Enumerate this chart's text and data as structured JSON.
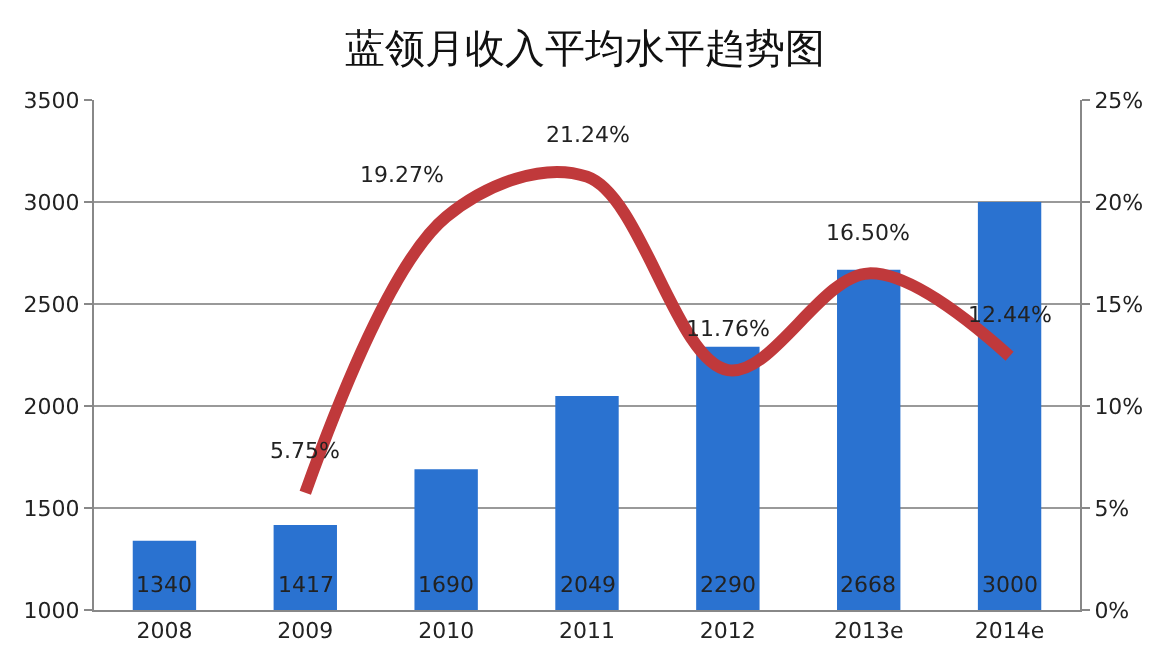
{
  "chart_data": {
    "type": "bar",
    "title": "蓝领月收入平均水平趋势图",
    "categories": [
      "2008",
      "2009",
      "2010",
      "2011",
      "2012",
      "2013e",
      "2014e"
    ],
    "series": [
      {
        "color": "#2a72d0",
        "values": [
          1340,
          1417,
          1690,
          2049,
          2290,
          2668,
          3000
        ],
        "value_labels": [
          "1340",
          "1417",
          "1690",
          "2049",
          "2290",
          "2668",
          "3000"
        ]
      },
      {
        "type": "line",
        "axis": "y2",
        "color": "#c0393b",
        "values": [
          null,
          5.75,
          19.27,
          21.24,
          11.76,
          16.5,
          12.44
        ],
        "value_labels": [
          null,
          "5.75%",
          "19.27%",
          "21.24%",
          "11.76%",
          "16.50%",
          "12.44%"
        ]
      }
    ],
    "ylim": [
      1000,
      3500
    ],
    "yticks": [
      1000,
      1500,
      2000,
      2500,
      3000,
      3500
    ],
    "y2lim": [
      0,
      25
    ],
    "y2ticks": [
      {
        "value": 0,
        "label": "0%"
      },
      {
        "value": 5,
        "label": "5%"
      },
      {
        "value": 10,
        "label": "10%"
      },
      {
        "value": 15,
        "label": "15%"
      },
      {
        "value": 20,
        "label": "20%"
      },
      {
        "value": 25,
        "label": "25%"
      }
    ],
    "grid": "y",
    "legend": false,
    "marker": "none",
    "line_style": "solid"
  }
}
